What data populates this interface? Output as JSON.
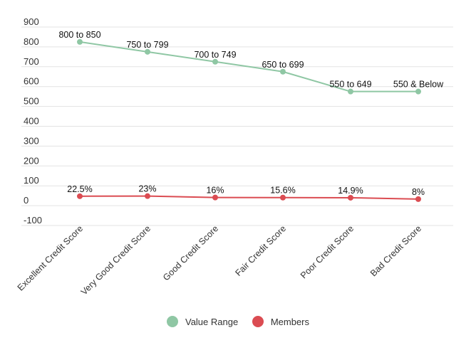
{
  "chart_data": {
    "type": "line",
    "categories": [
      "Excellent Credit Score",
      "Very Good Credit Score",
      "Good Credit Score",
      "Fair Credit Score",
      "Poor Credit Score",
      "Bad Credit Score"
    ],
    "ylim": [
      -100,
      900
    ],
    "yticks": [
      -100,
      0,
      100,
      200,
      300,
      400,
      500,
      600,
      700,
      800,
      900
    ],
    "grid": true,
    "legend_position": "bottom",
    "series": [
      {
        "name": "Value Range",
        "color": "#8fc7a4",
        "values": [
          800,
          750,
          700,
          650,
          550,
          550
        ],
        "labels": [
          "800 to 850",
          "750 to 799",
          "700 to 749",
          "650 to 699",
          "550 to 649",
          "550 & Below"
        ]
      },
      {
        "name": "Members",
        "color": "#db4c52",
        "values": [
          22.5,
          23,
          16,
          15.6,
          14.9,
          8
        ],
        "labels": [
          "22.5%",
          "23%",
          "16%",
          "15.6%",
          "14.9%",
          "8%"
        ]
      }
    ]
  }
}
